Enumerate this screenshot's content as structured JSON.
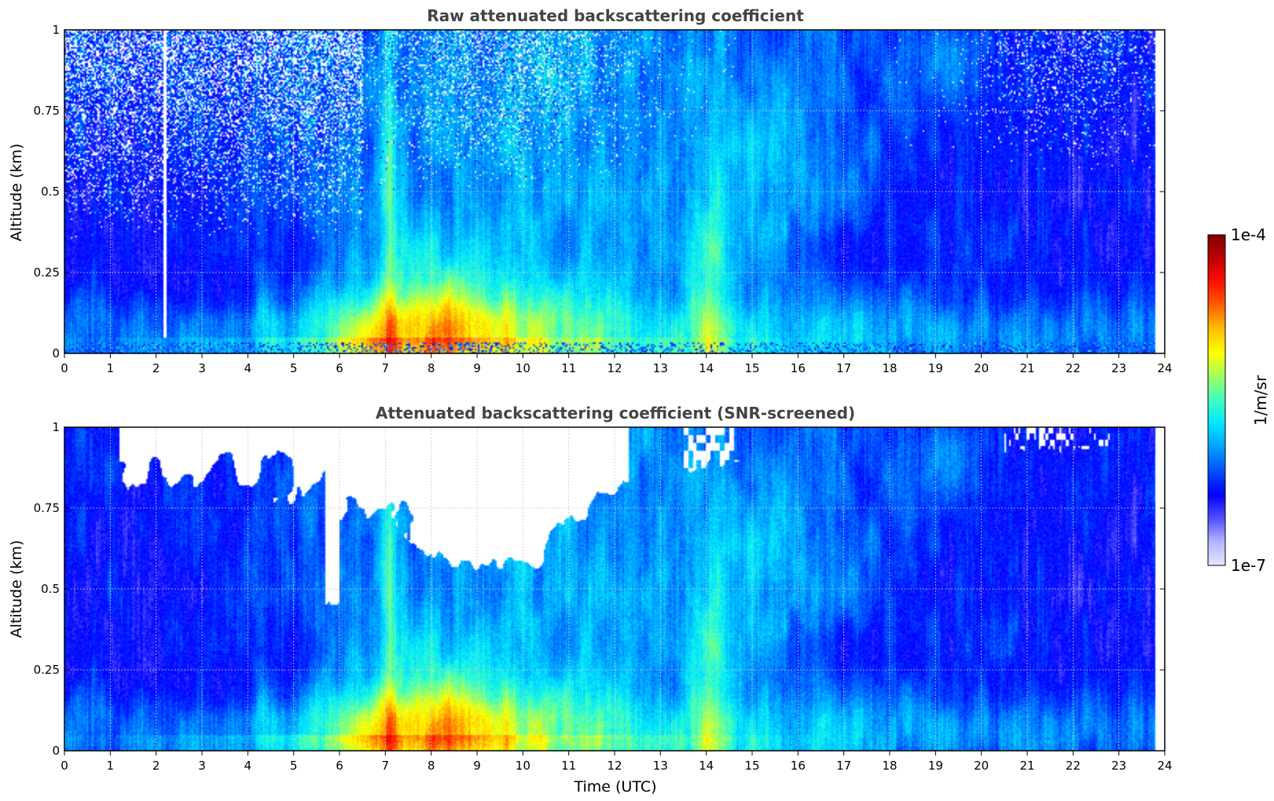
{
  "chart_data": [
    {
      "type": "heatmap",
      "title": "Raw attenuated backscattering coefficient",
      "xlabel": "",
      "ylabel": "Altitude (km)",
      "xlim": [
        0,
        24
      ],
      "ylim": [
        0,
        1
      ],
      "x_ticks": [
        "0",
        "1",
        "2",
        "3",
        "4",
        "5",
        "6",
        "7",
        "8",
        "9",
        "10",
        "11",
        "12",
        "13",
        "14",
        "15",
        "16",
        "17",
        "18",
        "19",
        "20",
        "21",
        "22",
        "23",
        "24"
      ],
      "y_ticks": [
        "0",
        "0.25",
        "0.5",
        "0.75",
        "1"
      ],
      "grid": true,
      "data_extent_hours": 23.8,
      "colorscale": "jet, logarithmic",
      "screened": false
    },
    {
      "type": "heatmap",
      "title": "Attenuated backscattering coefficient (SNR-screened)",
      "xlabel": "Time (UTC)",
      "ylabel": "Altitude (km)",
      "xlim": [
        0,
        24
      ],
      "ylim": [
        0,
        1
      ],
      "x_ticks": [
        "0",
        "1",
        "2",
        "3",
        "4",
        "5",
        "6",
        "7",
        "8",
        "9",
        "10",
        "11",
        "12",
        "13",
        "14",
        "15",
        "16",
        "17",
        "18",
        "19",
        "20",
        "21",
        "22",
        "23",
        "24"
      ],
      "y_ticks": [
        "0",
        "0.25",
        "0.5",
        "0.75",
        "1"
      ],
      "grid": true,
      "data_extent_hours": 23.8,
      "colorscale": "jet, logarithmic",
      "screened": true
    }
  ],
  "colorbar": {
    "max_label": "1e-4",
    "min_label": "1e-7",
    "unit_label": "1/m/sr",
    "colors": [
      "#e6e6ff",
      "#b4b4ff",
      "#5050ff",
      "#0000ff",
      "#0050ff",
      "#00a0ff",
      "#00e6ff",
      "#40ffc0",
      "#a0ff60",
      "#ffff00",
      "#ffc000",
      "#ff6000",
      "#ff1000",
      "#c00000",
      "#800000"
    ]
  }
}
